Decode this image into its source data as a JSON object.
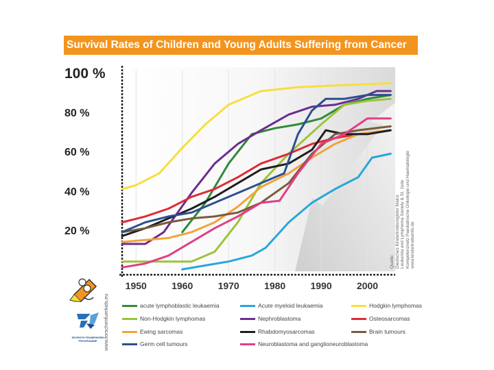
{
  "slide": {
    "title": "Survival Rates of Children and Young Adults Suffering from Cancer",
    "side_url": "www.forschenfuerkids.eu",
    "source_lines": [
      "Quelle:",
      "Deutsches Kinderkrebsregister Mainz",
      "Leukemia and Lymphoma Society & St. Jude",
      "Kompetenznetz Paediatrische Onkologie und Haematologie",
      "www.kinderkrebsinfo.de"
    ],
    "logos": {
      "programme_label": "SEVENTH FRAMEWORK PROGRAMME"
    }
  },
  "chart_data": {
    "type": "line",
    "title": "Survival Rates of Children and Young Adults Suffering from Cancer",
    "xlabel": "",
    "ylabel": "",
    "xlim": [
      1947,
      2006
    ],
    "ylim": [
      0,
      100
    ],
    "x_ticks": [
      1950,
      1960,
      1970,
      1980,
      1990,
      2000
    ],
    "x_tick_labels": [
      "1950",
      "1960",
      "1970",
      "1980",
      "1990",
      "2000"
    ],
    "y_ticks": [
      20,
      40,
      60,
      80,
      100
    ],
    "y_tick_labels": [
      "20 %",
      "40 %",
      "60 %",
      "80 %",
      "100 %"
    ],
    "legend_position": "bottom",
    "series": [
      {
        "name": "acute lymphoblastic leukaemia",
        "color": "#2e8b3a",
        "x": [
          1960,
          1965,
          1970,
          1975,
          1980,
          1985,
          1990,
          1995,
          2000,
          2005
        ],
        "y": [
          20,
          35,
          55,
          70,
          73,
          75,
          78,
          85,
          88,
          90
        ]
      },
      {
        "name": "Acute myeloid leukaemia",
        "color": "#27a6dc",
        "x": [
          1960,
          1965,
          1970,
          1975,
          1978,
          1983,
          1988,
          1993,
          1998,
          2001,
          2005
        ],
        "y": [
          1,
          3,
          5,
          8,
          12,
          25,
          35,
          42,
          48,
          58,
          60
        ]
      },
      {
        "name": "Hodgkin lymphomas",
        "color": "#f7de3c",
        "x": [
          1947,
          1950,
          1955,
          1960,
          1965,
          1970,
          1977,
          1985,
          1995,
          2005
        ],
        "y": [
          42,
          44,
          50,
          63,
          75,
          85,
          92,
          94,
          95,
          96
        ]
      },
      {
        "name": "Non-Hodgkin lymphomas",
        "color": "#9cc33a",
        "x": [
          1947,
          1955,
          1962,
          1967,
          1972,
          1977,
          1983,
          1990,
          1995,
          2000,
          2005
        ],
        "y": [
          5,
          5,
          5,
          10,
          25,
          45,
          60,
          75,
          85,
          87,
          88
        ]
      },
      {
        "name": "Nephroblastoma",
        "color": "#6a2d8f",
        "x": [
          1947,
          1952,
          1956,
          1962,
          1967,
          1972,
          1977,
          1983,
          1988,
          1993,
          1998,
          2002,
          2005
        ],
        "y": [
          14,
          14,
          20,
          40,
          55,
          65,
          72,
          80,
          84,
          85,
          88,
          92,
          92
        ]
      },
      {
        "name": "Osteosarcomas",
        "color": "#de2b35",
        "x": [
          1947,
          1952,
          1957,
          1962,
          1967,
          1972,
          1977,
          1983,
          1988,
          1993,
          1998,
          2005
        ],
        "y": [
          25,
          28,
          32,
          38,
          42,
          48,
          55,
          60,
          65,
          68,
          70,
          72
        ]
      },
      {
        "name": "Ewing sarcomas",
        "color": "#f2a33a",
        "x": [
          1947,
          1952,
          1957,
          1962,
          1967,
          1972,
          1977,
          1983,
          1988,
          1993,
          1998,
          2005
        ],
        "y": [
          15,
          16,
          17,
          20,
          25,
          33,
          43,
          50,
          58,
          65,
          70,
          72
        ]
      },
      {
        "name": "Rhabdomyosarcomas",
        "color": "#1e1e1e",
        "x": [
          1947,
          1952,
          1957,
          1962,
          1967,
          1972,
          1977,
          1983,
          1988,
          1991,
          1995,
          2000,
          2005
        ],
        "y": [
          18,
          22,
          27,
          32,
          38,
          45,
          52,
          55,
          62,
          72,
          70,
          70,
          72
        ]
      },
      {
        "name": "Brain tumours",
        "color": "#7a5a3a",
        "x": [
          1947,
          1952,
          1957,
          1962,
          1967,
          1972,
          1977,
          1983,
          1988,
          1993,
          1998,
          2005
        ],
        "y": [
          20,
          22,
          25,
          27,
          28,
          30,
          35,
          45,
          60,
          70,
          72,
          74
        ]
      },
      {
        "name": "Germ cell tumours",
        "color": "#2c4f8f",
        "x": [
          1947,
          1952,
          1957,
          1962,
          1967,
          1972,
          1977,
          1982,
          1985,
          1988,
          1991,
          1995,
          2000,
          2005
        ],
        "y": [
          20,
          25,
          28,
          30,
          35,
          40,
          45,
          50,
          70,
          82,
          88,
          88,
          90,
          90
        ]
      },
      {
        "name": "Neuroblastoma and ganglioneuroblastoma",
        "color": "#e23d86",
        "x": [
          1947,
          1952,
          1957,
          1962,
          1967,
          1972,
          1977,
          1981,
          1985,
          1990,
          1995,
          2000,
          2005
        ],
        "y": [
          2,
          4,
          8,
          15,
          22,
          28,
          35,
          36,
          50,
          65,
          70,
          78,
          78
        ]
      }
    ]
  }
}
